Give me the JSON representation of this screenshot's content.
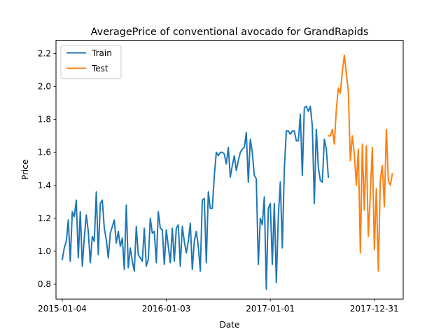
{
  "chart_data": {
    "type": "line",
    "title": "AveragePrice of conventional avocado for GrandRapids",
    "xlabel": "Date",
    "ylabel": "Price",
    "x_ticks": [
      "2015-01-04",
      "2016-01-03",
      "2017-01-01",
      "2017-12-31"
    ],
    "y_ticks": [
      "0.8",
      "1.0",
      "1.2",
      "1.4",
      "1.6",
      "1.8",
      "2.0",
      "2.2"
    ],
    "xlim": [
      "2014-12-13",
      "2018-04-11"
    ],
    "ylim": [
      0.71,
      2.28
    ],
    "grid": false,
    "legend_position": "top-left",
    "series": [
      {
        "name": "Train",
        "color": "#1f77b4",
        "start_date": "2015-01-04",
        "interval_days": 7,
        "values": [
          0.95,
          1.02,
          1.06,
          1.19,
          0.94,
          1.24,
          1.21,
          1.31,
          0.96,
          1.24,
          0.91,
          1.08,
          1.22,
          1.12,
          0.93,
          1.09,
          1.06,
          1.36,
          0.98,
          1.29,
          1.31,
          1.14,
          1.07,
          0.96,
          1.11,
          1.15,
          1.19,
          1.05,
          1.12,
          1.03,
          1.08,
          0.89,
          1.28,
          0.9,
          1.02,
          0.94,
          0.88,
          1.15,
          0.98,
          0.96,
          0.94,
          1.14,
          0.91,
          0.95,
          1.2,
          1.11,
          1.12,
          0.93,
          1.24,
          1.14,
          1.13,
          0.92,
          1.13,
          1.03,
          0.93,
          1.14,
          0.94,
          1.14,
          1.16,
          0.91,
          1.15,
          1.06,
          0.99,
          1.06,
          1.17,
          0.89,
          1.06,
          1.12,
          1.03,
          0.88,
          1.31,
          1.32,
          0.93,
          1.36,
          1.26,
          1.26,
          1.46,
          1.6,
          1.58,
          1.6,
          1.6,
          1.59,
          1.53,
          1.63,
          1.45,
          1.52,
          1.58,
          1.49,
          1.55,
          1.6,
          1.62,
          1.63,
          1.72,
          1.42,
          1.68,
          1.6,
          1.46,
          1.44,
          0.92,
          1.2,
          1.16,
          1.33,
          0.77,
          1.26,
          1.29,
          0.92,
          1.29,
          0.81,
          1.21,
          1.42,
          1.02,
          1.5,
          1.73,
          1.73,
          1.71,
          1.73,
          1.73,
          1.67,
          1.67,
          1.83,
          1.46,
          1.87,
          1.88,
          1.85,
          1.88,
          1.76,
          1.29,
          1.74,
          1.51,
          1.43,
          1.42,
          1.68,
          1.62,
          1.45
        ]
      },
      {
        "name": "Test",
        "color": "#ff7f0e",
        "start_date": "2017-07-23",
        "interval_days": 7,
        "values": [
          1.7,
          1.7,
          1.74,
          1.65,
          1.86,
          1.99,
          1.96,
          2.09,
          2.19,
          2.08,
          1.97,
          1.55,
          1.7,
          1.59,
          1.4,
          1.62,
          0.99,
          1.65,
          1.25,
          1.64,
          1.09,
          1.35,
          1.63,
          1.01,
          1.38,
          0.88,
          1.44,
          1.52,
          1.27,
          1.74,
          1.43,
          1.4,
          1.47
        ]
      }
    ]
  }
}
